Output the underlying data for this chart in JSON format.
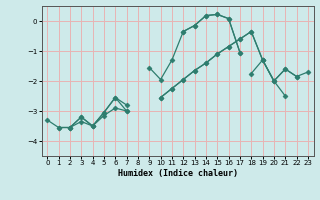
{
  "background_color": "#ceeaea",
  "grid_color": "#e8b4b4",
  "line_color": "#2e7d6e",
  "marker": "D",
  "marker_size": 2.5,
  "xlabel": "Humidex (Indice chaleur)",
  "ylim": [
    -4.5,
    0.5
  ],
  "xlim": [
    -0.5,
    23.5
  ],
  "yticks": [
    0,
    -1,
    -2,
    -3,
    -4
  ],
  "xtick_labels": [
    "0",
    "1",
    "2",
    "3",
    "4",
    "5",
    "6",
    "7",
    "8",
    "9",
    "10",
    "11",
    "12",
    "13",
    "14",
    "15",
    "16",
    "17",
    "18",
    "19",
    "20",
    "21",
    "22",
    "23"
  ],
  "series": [
    [
      null,
      null,
      null,
      null,
      null,
      null,
      null,
      null,
      null,
      null,
      null,
      null,
      -0.35,
      -0.15,
      0.18,
      0.22,
      0.08,
      -1.05,
      null,
      null,
      null,
      null,
      null,
      null
    ],
    [
      null,
      null,
      null,
      null,
      null,
      null,
      null,
      null,
      null,
      -1.55,
      -1.95,
      -1.3,
      -0.35,
      -0.15,
      0.18,
      0.22,
      0.08,
      -1.05,
      null,
      null,
      null,
      null,
      null,
      null
    ],
    [
      null,
      -3.55,
      -3.55,
      -3.2,
      -3.5,
      -3.05,
      -2.55,
      -2.8,
      null,
      null,
      null,
      null,
      null,
      null,
      null,
      null,
      null,
      null,
      -1.75,
      -1.3,
      -2.0,
      -1.6,
      -1.85,
      null
    ],
    [
      -3.3,
      -3.55,
      -3.55,
      -3.2,
      -3.5,
      -3.05,
      -2.55,
      -3.0,
      null,
      null,
      -2.55,
      -2.25,
      -1.95,
      -1.65,
      -1.4,
      -1.1,
      -0.85,
      -0.6,
      -0.35,
      -1.3,
      -2.0,
      -1.6,
      -1.85,
      -1.7
    ],
    [
      null,
      null,
      -3.55,
      -3.35,
      -3.5,
      -3.15,
      -2.9,
      -3.0,
      null,
      null,
      -2.55,
      -2.25,
      -1.95,
      -1.65,
      -1.4,
      -1.1,
      -0.85,
      -0.6,
      -0.35,
      -1.3,
      -2.0,
      -2.5,
      null,
      null
    ]
  ]
}
